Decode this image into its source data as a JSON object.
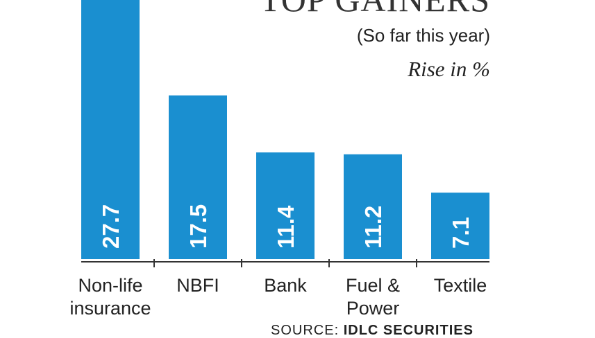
{
  "colors": {
    "bar": "#1A8FD0",
    "axis": "#333333",
    "value_label": "#ffffff",
    "text": "#222222"
  },
  "source": {
    "prefix": "SOURCE:",
    "name": "IDLC SECURITIES"
  },
  "chart_data": {
    "type": "bar",
    "title": "TOP GAINERS",
    "subtitle": "(So far this year)",
    "unit_label": "Rise in %",
    "categories": [
      "Non-life insurance",
      "NBFI",
      "Bank",
      "Fuel & Power",
      "Textile"
    ],
    "category_lines": [
      [
        "Non-life",
        "insurance"
      ],
      [
        "NBFI"
      ],
      [
        "Bank"
      ],
      [
        "Fuel &",
        "Power"
      ],
      [
        "Textile"
      ]
    ],
    "values": [
      27.7,
      17.5,
      11.4,
      11.2,
      7.1
    ],
    "value_labels": [
      "27.7",
      "17.5",
      "11.4",
      "11.2",
      "7.1"
    ],
    "ylim": [
      0,
      27.7
    ],
    "grid": false,
    "legend": "none",
    "xlabel": "",
    "ylabel": ""
  }
}
